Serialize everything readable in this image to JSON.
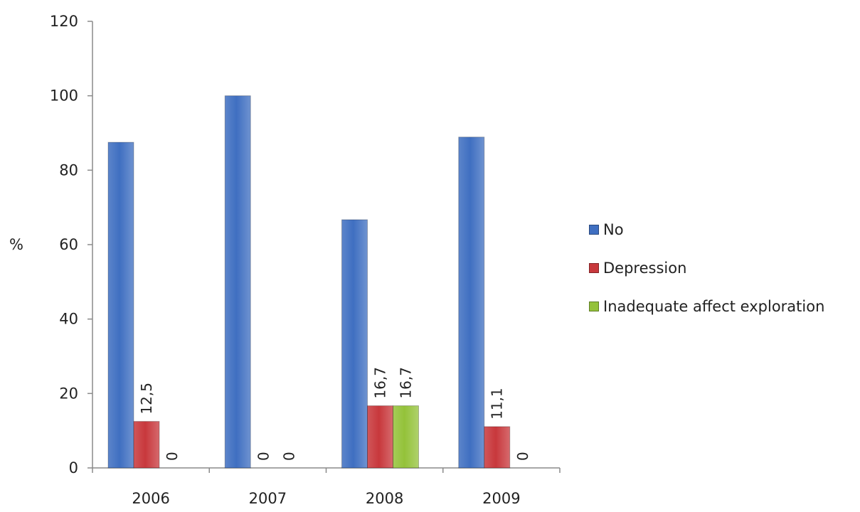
{
  "chart_data": {
    "type": "bar",
    "categories": [
      "2006",
      "2007",
      "2008",
      "2009"
    ],
    "series": [
      {
        "name": "No",
        "values": [
          87.5,
          100,
          66.7,
          88.9
        ],
        "color": "#3f6fc1"
      },
      {
        "name": "Depression",
        "values": [
          12.5,
          0,
          16.7,
          11.1
        ],
        "color": "#c8383c",
        "labels": [
          "12,5",
          "",
          "16,7",
          "11,1"
        ]
      },
      {
        "name": "Inadequate affect exploration",
        "values": [
          0,
          0,
          16.7,
          0
        ],
        "color": "#94c23a",
        "labels": [
          "0",
          "0",
          "16,7",
          "0"
        ]
      }
    ],
    "ylabel": "%",
    "xlabel": "",
    "ylim": [
      0,
      120
    ],
    "yticks": [
      0,
      20,
      40,
      60,
      80,
      100,
      120
    ],
    "grid": false,
    "legend_position": "right"
  }
}
